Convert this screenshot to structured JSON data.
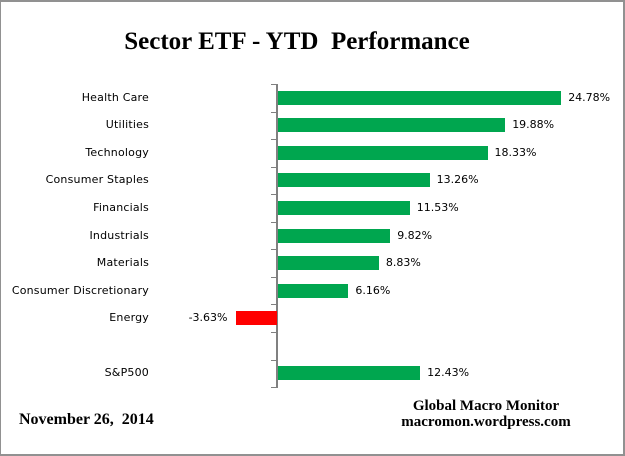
{
  "title": "Sector ETF - YTD  Performance",
  "footer": {
    "date": "November 26,  2014",
    "credit_line1": "Global Macro Monitor",
    "credit_line2": "macromon.wordpress.com"
  },
  "colors": {
    "positive": "#00A64F",
    "negative": "#FF0000",
    "axis": "#808080",
    "border": "#919191"
  },
  "chart_data": {
    "type": "bar",
    "orientation": "horizontal",
    "title": "Sector ETF - YTD  Performance",
    "categories": [
      "Health Care",
      "Utilities",
      "Technology",
      "Consumer Staples",
      "Financials",
      "Industrials",
      "Materials",
      "Consumer Discretionary",
      "Energy",
      "",
      "S&P500"
    ],
    "values": [
      24.78,
      19.88,
      18.33,
      13.26,
      11.53,
      9.82,
      8.83,
      6.16,
      -3.63,
      null,
      12.43
    ],
    "value_labels": [
      "24.78%",
      "19.88%",
      "18.33%",
      "13.26%",
      "11.53%",
      "9.82%",
      "8.83%",
      "6.16%",
      "-3.63%",
      "",
      "12.43%"
    ],
    "unit": "%",
    "xlim": [
      -10,
      30
    ],
    "grid": false,
    "legend": false,
    "data_labels": true,
    "zero_axis": true,
    "axis_ticks": "category-boundaries",
    "bar_color_positive": "#00A64F",
    "bar_color_negative": "#FF0000"
  }
}
